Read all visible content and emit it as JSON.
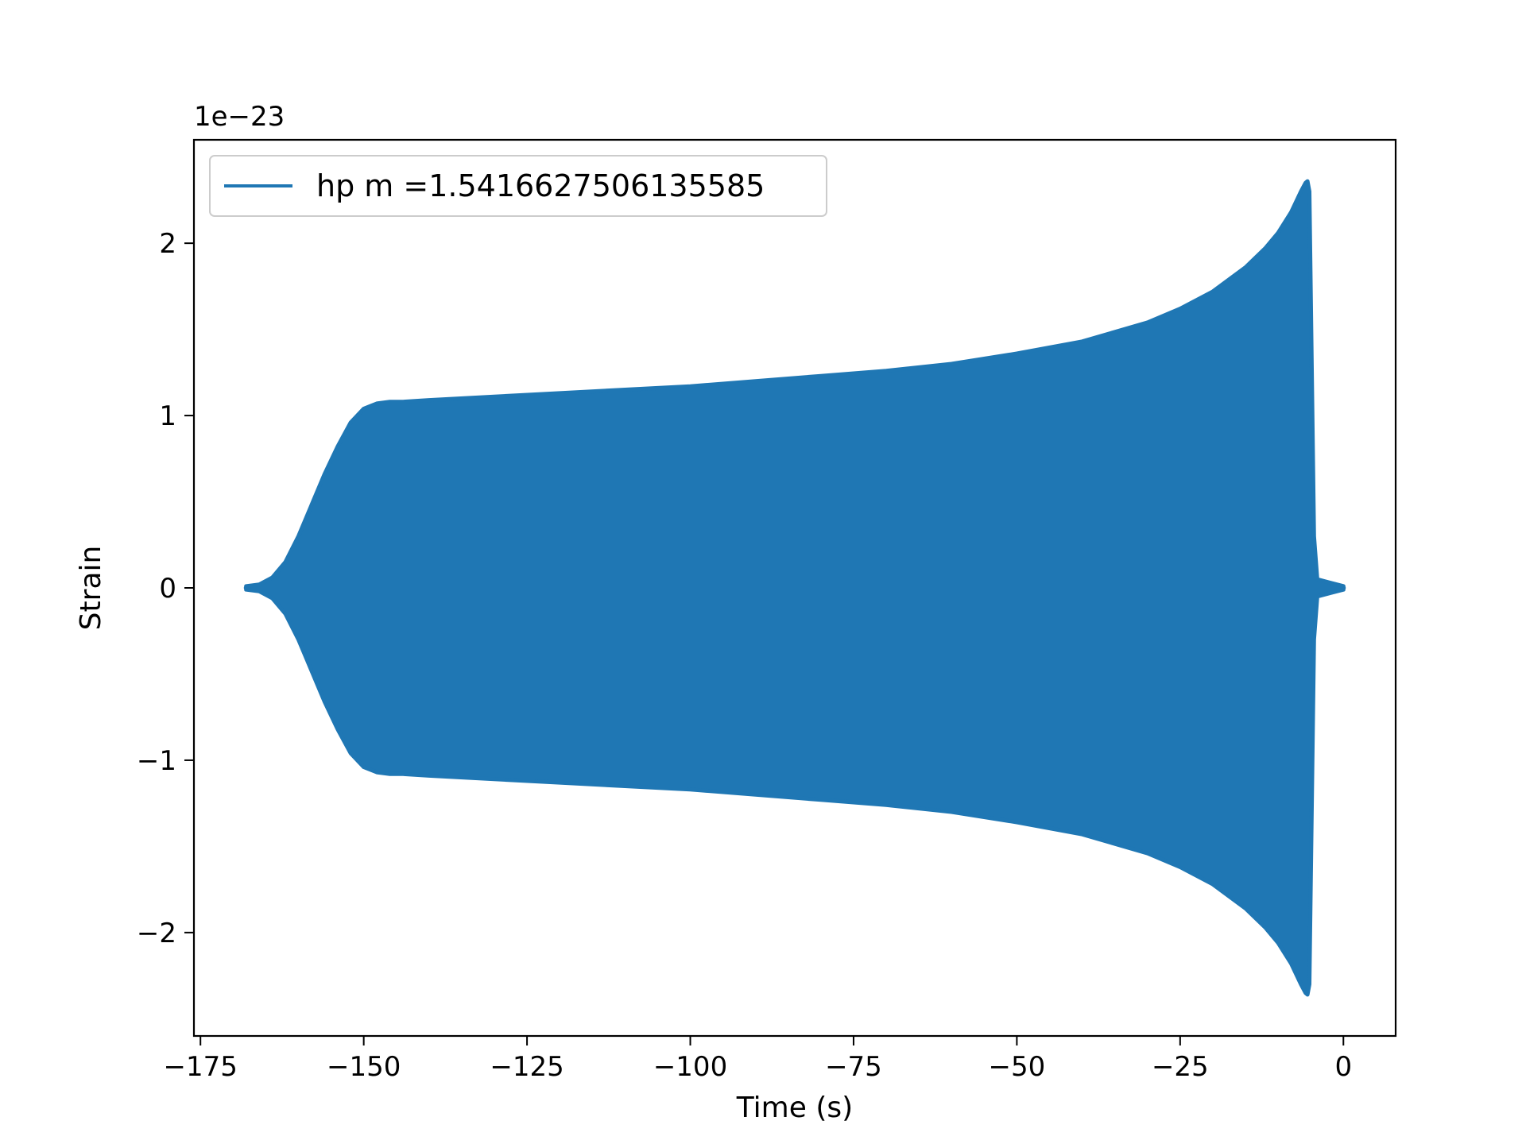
{
  "chart_data": {
    "type": "line",
    "title": "",
    "xlabel": "Time (s)",
    "ylabel": "Strain",
    "y_offset_text": "1e−23",
    "y_scale": 1e-23,
    "xlim": [
      -176,
      8
    ],
    "ylim": [
      -2.6,
      2.6
    ],
    "xticks": [
      -175,
      -150,
      -125,
      -100,
      -75,
      -50,
      -25,
      0
    ],
    "xtick_labels": [
      "−175",
      "−150",
      "−125",
      "−100",
      "−75",
      "−50",
      "−25",
      "0"
    ],
    "yticks": [
      -2,
      -1,
      0,
      1,
      2
    ],
    "ytick_labels": [
      "−2",
      "−1",
      "0",
      "1",
      "2"
    ],
    "grid": false,
    "legend_placement": "upper-left",
    "series": [
      {
        "name": "hp m =1.5416627506135585",
        "color": "#1f77b4",
        "start_x": -168,
        "end_x": 0,
        "envelope": {
          "x": [
            -168,
            -166,
            -164,
            -162,
            -160,
            -158,
            -156,
            -154,
            -152,
            -150,
            -148,
            -146,
            -144,
            -140,
            -130,
            -120,
            -110,
            -100,
            -90,
            -80,
            -70,
            -60,
            -55,
            -50,
            -40,
            -30,
            -25,
            -20,
            -15,
            -12,
            -10,
            -8,
            -6.5,
            -5.8,
            -5.5,
            -5.2,
            -4.5,
            -4,
            -2,
            0
          ],
          "upper": [
            0.01,
            0.02,
            0.06,
            0.15,
            0.3,
            0.48,
            0.66,
            0.82,
            0.96,
            1.04,
            1.07,
            1.08,
            1.08,
            1.09,
            1.11,
            1.13,
            1.15,
            1.17,
            1.2,
            1.23,
            1.26,
            1.3,
            1.33,
            1.36,
            1.43,
            1.54,
            1.62,
            1.72,
            1.86,
            1.97,
            2.06,
            2.18,
            2.3,
            2.35,
            2.36,
            2.3,
            0.3,
            0.05,
            0.03,
            0.01
          ],
          "lower": [
            -0.01,
            -0.02,
            -0.06,
            -0.15,
            -0.3,
            -0.48,
            -0.66,
            -0.82,
            -0.96,
            -1.04,
            -1.07,
            -1.08,
            -1.08,
            -1.09,
            -1.11,
            -1.13,
            -1.15,
            -1.17,
            -1.2,
            -1.23,
            -1.26,
            -1.3,
            -1.33,
            -1.36,
            -1.43,
            -1.54,
            -1.62,
            -1.72,
            -1.86,
            -1.97,
            -2.06,
            -2.18,
            -2.3,
            -2.35,
            -2.36,
            -2.3,
            -0.3,
            -0.05,
            -0.03,
            -0.01
          ]
        }
      }
    ]
  }
}
